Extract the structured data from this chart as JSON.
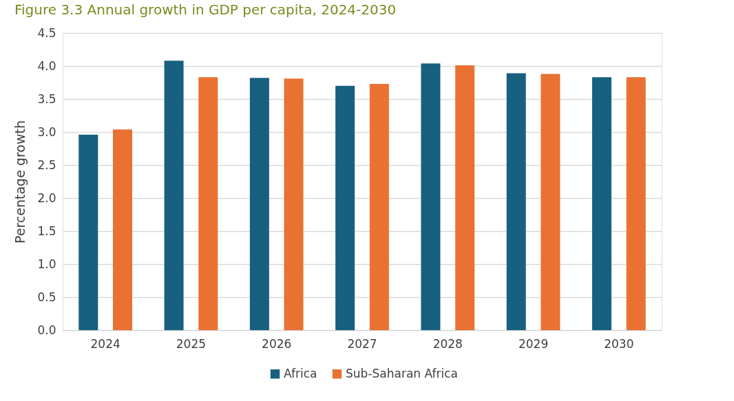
{
  "chart_data": {
    "type": "bar",
    "title": "Figure 3.3 Annual growth in GDP per capita, 2024-2030",
    "ylabel": "Percentage growth",
    "categories": [
      "2024",
      "2025",
      "2026",
      "2027",
      "2028",
      "2029",
      "2030"
    ],
    "series": [
      {
        "name": "Africa",
        "color": "#17607f",
        "values": [
          2.96,
          4.08,
          3.82,
          3.7,
          4.04,
          3.89,
          3.83
        ]
      },
      {
        "name": "Sub-Saharan Africa",
        "color": "#e97132",
        "values": [
          3.04,
          3.83,
          3.81,
          3.73,
          4.01,
          3.88,
          3.83
        ]
      }
    ],
    "ylim": [
      0,
      4.5
    ],
    "yticks": [
      {
        "value": 0,
        "label": "0.0"
      },
      0.5,
      {
        "value": 1,
        "label": "1.0"
      },
      1.5,
      {
        "value": 2,
        "label": "2.0"
      },
      2.5,
      {
        "value": 3,
        "label": "3.0"
      },
      3.5,
      {
        "value": 4,
        "label": "4.0"
      },
      4.5
    ],
    "grid": "y",
    "legend": "bottom"
  }
}
